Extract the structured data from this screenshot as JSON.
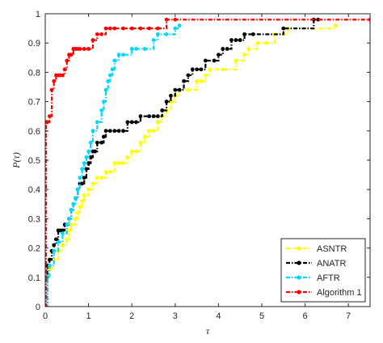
{
  "chart_data": {
    "type": "line",
    "xlabel": "τ",
    "ylabel": "P(τ)",
    "xlim": [
      0,
      7.5
    ],
    "ylim": [
      0,
      1
    ],
    "xticks": [
      "0",
      "1",
      "2",
      "3",
      "4",
      "5",
      "6",
      "7"
    ],
    "yticks": [
      "0",
      "0.1",
      "0.2",
      "0.3",
      "0.4",
      "0.5",
      "0.6",
      "0.7",
      "0.8",
      "0.9",
      "1"
    ],
    "grid": false,
    "legend_position": "bottom-right",
    "series": [
      {
        "name": "ASNTR",
        "color": "#ffff00",
        "x": [
          0,
          0.05,
          0.1,
          0.2,
          0.3,
          0.4,
          0.5,
          0.55,
          0.6,
          0.7,
          0.75,
          0.8,
          0.85,
          0.9,
          1.0,
          1.1,
          1.2,
          1.3,
          1.4,
          1.5,
          1.6,
          1.7,
          1.8,
          1.9,
          2.0,
          2.1,
          2.2,
          2.3,
          2.4,
          2.5,
          2.6,
          2.7,
          2.8,
          2.9,
          3.0,
          3.1,
          3.3,
          3.5,
          3.6,
          3.7,
          3.8,
          4.1,
          4.4,
          4.6,
          4.7,
          4.9,
          5.1,
          5.3,
          5.6,
          6.7
        ],
        "y": [
          0.0,
          0.1,
          0.13,
          0.16,
          0.19,
          0.21,
          0.23,
          0.26,
          0.28,
          0.3,
          0.32,
          0.34,
          0.36,
          0.38,
          0.4,
          0.42,
          0.44,
          0.44,
          0.46,
          0.46,
          0.49,
          0.49,
          0.49,
          0.51,
          0.53,
          0.53,
          0.56,
          0.58,
          0.6,
          0.6,
          0.63,
          0.65,
          0.67,
          0.7,
          0.72,
          0.74,
          0.74,
          0.77,
          0.77,
          0.79,
          0.81,
          0.81,
          0.84,
          0.86,
          0.88,
          0.9,
          0.9,
          0.93,
          0.95,
          0.96
        ]
      },
      {
        "name": "ANATR",
        "color": "#000000",
        "x": [
          0,
          0.05,
          0.1,
          0.15,
          0.2,
          0.25,
          0.3,
          0.35,
          0.4,
          0.45,
          0.5,
          0.55,
          0.6,
          0.65,
          0.7,
          0.75,
          0.8,
          0.85,
          0.9,
          0.95,
          1.0,
          1.05,
          1.1,
          1.15,
          1.2,
          1.3,
          1.35,
          1.4,
          1.5,
          1.6,
          1.7,
          1.8,
          1.9,
          2.0,
          2.1,
          2.2,
          2.4,
          2.5,
          2.6,
          2.7,
          2.8,
          2.9,
          3.0,
          3.1,
          3.2,
          3.3,
          3.4,
          3.5,
          3.6,
          3.7,
          3.9,
          4.0,
          4.1,
          4.2,
          4.3,
          4.4,
          4.5,
          4.6,
          4.8,
          5.5,
          6.2,
          6.3
        ],
        "y": [
          0.0,
          0.14,
          0.16,
          0.19,
          0.21,
          0.23,
          0.26,
          0.26,
          0.26,
          0.28,
          0.28,
          0.3,
          0.33,
          0.35,
          0.37,
          0.4,
          0.42,
          0.42,
          0.44,
          0.47,
          0.49,
          0.51,
          0.53,
          0.53,
          0.56,
          0.56,
          0.58,
          0.6,
          0.6,
          0.6,
          0.6,
          0.6,
          0.63,
          0.63,
          0.63,
          0.65,
          0.65,
          0.65,
          0.65,
          0.67,
          0.7,
          0.72,
          0.74,
          0.74,
          0.77,
          0.79,
          0.81,
          0.81,
          0.81,
          0.84,
          0.84,
          0.86,
          0.88,
          0.88,
          0.91,
          0.91,
          0.91,
          0.93,
          0.93,
          0.95,
          0.98,
          0.98
        ]
      },
      {
        "name": "AFTR",
        "color": "#00d8ff",
        "x": [
          0,
          0.05,
          0.1,
          0.2,
          0.3,
          0.4,
          0.5,
          0.55,
          0.6,
          0.65,
          0.7,
          0.75,
          0.8,
          0.85,
          0.9,
          0.95,
          1.0,
          1.05,
          1.1,
          1.2,
          1.3,
          1.35,
          1.4,
          1.45,
          1.5,
          1.55,
          1.6,
          1.7,
          1.8,
          2.0,
          2.1,
          2.3,
          2.5,
          2.6,
          2.8,
          3.0,
          3.1
        ],
        "y": [
          0.0,
          0.1,
          0.14,
          0.19,
          0.22,
          0.25,
          0.28,
          0.3,
          0.33,
          0.35,
          0.37,
          0.4,
          0.44,
          0.47,
          0.49,
          0.51,
          0.53,
          0.56,
          0.6,
          0.63,
          0.67,
          0.7,
          0.74,
          0.77,
          0.79,
          0.81,
          0.84,
          0.86,
          0.86,
          0.88,
          0.88,
          0.88,
          0.91,
          0.93,
          0.93,
          0.95,
          0.96
        ]
      },
      {
        "name": "Algorithm 1",
        "color": "#ff0000",
        "x": [
          0,
          0.02,
          0.05,
          0.1,
          0.15,
          0.2,
          0.25,
          0.3,
          0.35,
          0.4,
          0.45,
          0.5,
          0.55,
          0.6,
          0.65,
          0.7,
          0.75,
          0.8,
          0.9,
          1.0,
          1.1,
          1.2,
          1.3,
          1.4,
          1.5,
          1.6,
          1.8,
          2.0,
          2.2,
          2.4,
          2.6,
          2.8,
          3.0,
          7.5
        ],
        "y": [
          0.0,
          0.63,
          0.63,
          0.65,
          0.74,
          0.77,
          0.79,
          0.79,
          0.79,
          0.79,
          0.81,
          0.84,
          0.86,
          0.86,
          0.88,
          0.88,
          0.88,
          0.88,
          0.88,
          0.88,
          0.91,
          0.93,
          0.93,
          0.95,
          0.95,
          0.95,
          0.95,
          0.95,
          0.95,
          0.95,
          0.95,
          0.98,
          0.98,
          0.98
        ]
      }
    ]
  }
}
